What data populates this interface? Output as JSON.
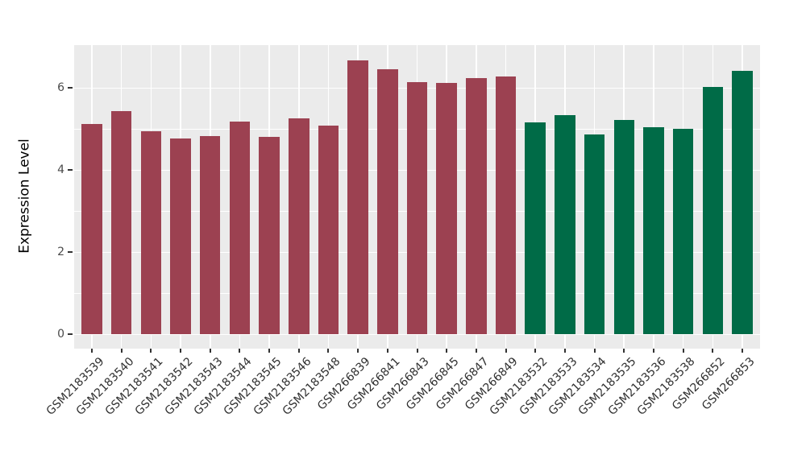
{
  "chart_data": {
    "type": "bar",
    "title": "",
    "xlabel": "",
    "ylabel": "Expression Level",
    "ylim": [
      -0.33,
      7.02
    ],
    "yticks": [
      0,
      2,
      4,
      6
    ],
    "yticks_minor": [
      1,
      3,
      5
    ],
    "grid": "white major and minor horizontal lines plus major vertical lines at each category, on gray panel",
    "legend_position": "none",
    "panel_bg": "#EBEBEB",
    "axis_text_color": "#4a4a4a",
    "group_colors": {
      "group1": "#9C4151",
      "group2": "#006B47"
    },
    "bars": [
      {
        "label": "GSM2183539",
        "value": 5.12,
        "group": "group1"
      },
      {
        "label": "GSM2183540",
        "value": 5.44,
        "group": "group1"
      },
      {
        "label": "GSM2183541",
        "value": 4.95,
        "group": "group1"
      },
      {
        "label": "GSM2183542",
        "value": 4.77,
        "group": "group1"
      },
      {
        "label": "GSM2183543",
        "value": 4.83,
        "group": "group1"
      },
      {
        "label": "GSM2183544",
        "value": 5.18,
        "group": "group1"
      },
      {
        "label": "GSM2183545",
        "value": 4.81,
        "group": "group1"
      },
      {
        "label": "GSM2183546",
        "value": 5.27,
        "group": "group1"
      },
      {
        "label": "GSM2183548",
        "value": 5.08,
        "group": "group1"
      },
      {
        "label": "GSM266839",
        "value": 6.68,
        "group": "group1"
      },
      {
        "label": "GSM266841",
        "value": 6.45,
        "group": "group1"
      },
      {
        "label": "GSM266843",
        "value": 6.15,
        "group": "group1"
      },
      {
        "label": "GSM266845",
        "value": 6.12,
        "group": "group1"
      },
      {
        "label": "GSM266847",
        "value": 6.24,
        "group": "group1"
      },
      {
        "label": "GSM266849",
        "value": 6.28,
        "group": "group1"
      },
      {
        "label": "GSM2183532",
        "value": 5.16,
        "group": "group2"
      },
      {
        "label": "GSM2183533",
        "value": 5.33,
        "group": "group2"
      },
      {
        "label": "GSM2183534",
        "value": 4.87,
        "group": "group2"
      },
      {
        "label": "GSM2183535",
        "value": 5.23,
        "group": "group2"
      },
      {
        "label": "GSM2183536",
        "value": 5.05,
        "group": "group2"
      },
      {
        "label": "GSM2183538",
        "value": 5.0,
        "group": "group2"
      },
      {
        "label": "GSM266852",
        "value": 6.03,
        "group": "group2"
      },
      {
        "label": "GSM266853",
        "value": 6.41,
        "group": "group2"
      }
    ]
  }
}
